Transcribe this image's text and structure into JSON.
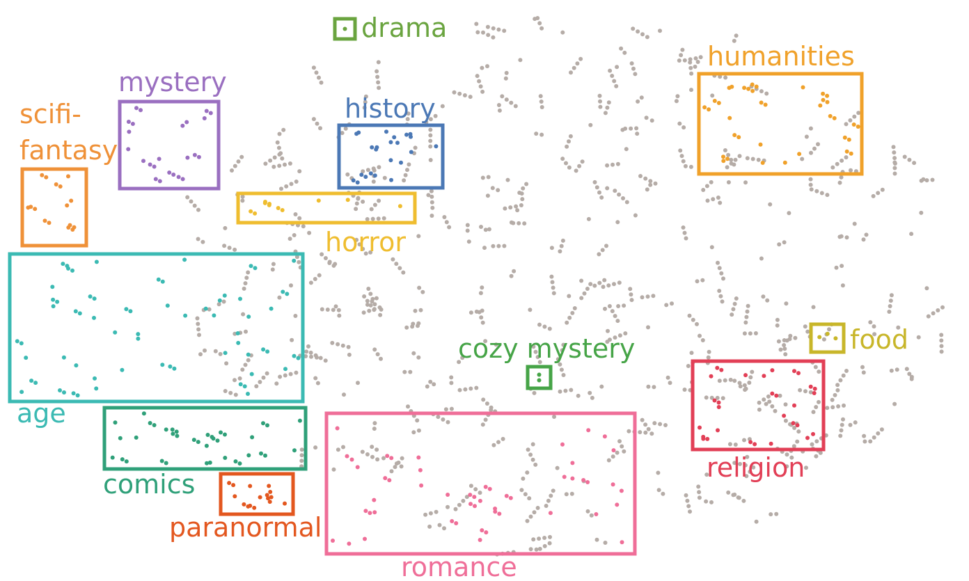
{
  "chart_data": {
    "type": "scatter",
    "title": "",
    "xlabel": "",
    "ylabel": "",
    "grid": false,
    "background_point_color": "#b5aca7",
    "clusters": [
      {
        "name": "drama",
        "color": "#6aa43f"
      },
      {
        "name": "humanities",
        "color": "#f0a12a"
      },
      {
        "name": "mystery",
        "color": "#9a6fc0"
      },
      {
        "name": "history",
        "color": "#4b78b5"
      },
      {
        "name": "scifi-",
        "color": "#ef9138"
      },
      {
        "name": "fantasy",
        "color": "#ef9138"
      },
      {
        "name": "horror",
        "color": "#efbd2f"
      },
      {
        "name": "age",
        "color": "#3bbab3"
      },
      {
        "name": "food",
        "color": "#c8b62a"
      },
      {
        "name": "cozy mystery",
        "color": "#46a447"
      },
      {
        "name": "religion",
        "color": "#e23f56"
      },
      {
        "name": "comics",
        "color": "#2fa079"
      },
      {
        "name": "paranormal",
        "color": "#e3571f"
      },
      {
        "name": "romance",
        "color": "#ef6e98"
      }
    ]
  }
}
